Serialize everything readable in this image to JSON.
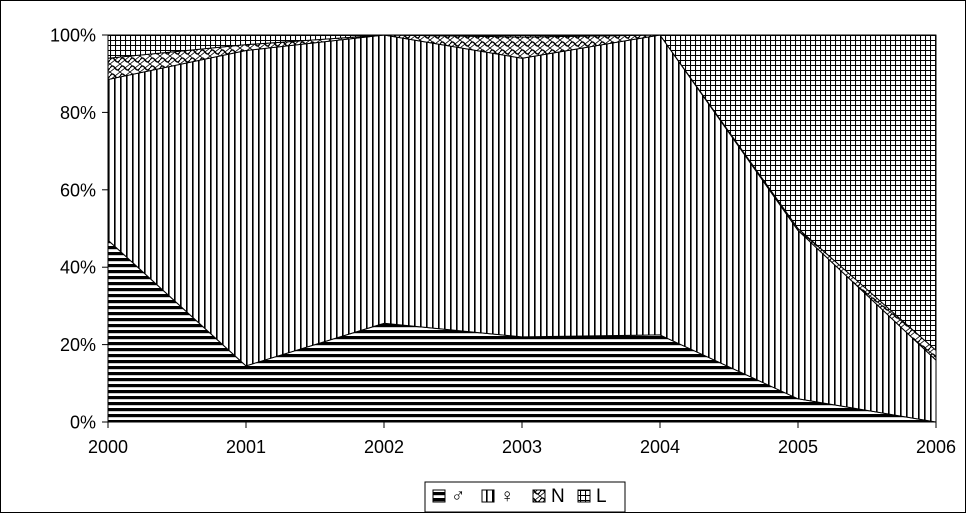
{
  "chart_data": {
    "type": "area",
    "stacked": true,
    "percent_stacked": true,
    "x": [
      "2000",
      "2001",
      "2002",
      "2003",
      "2004",
      "2005",
      "2006"
    ],
    "ylim": [
      0,
      100
    ],
    "y_ticks": [
      "0%",
      "20%",
      "40%",
      "60%",
      "80%",
      "100%"
    ],
    "grid": false,
    "legend_position": "bottom",
    "series": [
      {
        "name": "♂",
        "pattern": "horizontal-stripes",
        "values": [
          47,
          14.5,
          25.5,
          22,
          22.5,
          6,
          0
        ]
      },
      {
        "name": "♀",
        "pattern": "vertical-stripes",
        "values": [
          41.5,
          81.5,
          74.5,
          72,
          77.5,
          43.5,
          16
        ]
      },
      {
        "name": "N",
        "pattern": "wavy-crosshatch",
        "values": [
          5.5,
          1.5,
          0,
          5.5,
          0,
          0.5,
          2.5
        ]
      },
      {
        "name": "L",
        "pattern": "grid",
        "values": [
          6,
          2.5,
          0,
          0.5,
          0,
          50,
          81.5
        ]
      }
    ]
  },
  "colors": {
    "ink": "#000000",
    "background": "#ffffff"
  }
}
